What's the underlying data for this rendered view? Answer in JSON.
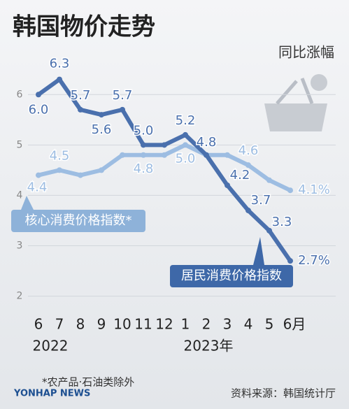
{
  "chart_data": {
    "type": "line",
    "title": "韩国物价走势",
    "subtitle": "同比涨幅",
    "categories": [
      "6",
      "7",
      "8",
      "9",
      "10",
      "11",
      "12",
      "1",
      "2",
      "3",
      "4",
      "5",
      "6月"
    ],
    "year_labels": [
      "2022",
      "2023年"
    ],
    "series": [
      {
        "name": "居民消费价格指数",
        "color": "#4a70ad",
        "values": [
          6.0,
          6.3,
          5.7,
          5.6,
          5.7,
          5.0,
          5.0,
          5.2,
          4.8,
          4.2,
          3.7,
          3.3,
          2.7
        ],
        "value_labels": [
          "6.0",
          "6.3",
          "5.7",
          "5.6",
          "5.7",
          "5.0",
          null,
          "5.2",
          "4.8",
          "4.2",
          "3.7",
          "3.3",
          "2.7%"
        ]
      },
      {
        "name": "核心消费价格指数*",
        "color": "#9dbde2",
        "values": [
          4.4,
          4.5,
          4.4,
          4.5,
          4.8,
          4.8,
          4.8,
          5.0,
          4.8,
          4.8,
          4.6,
          4.3,
          4.1
        ],
        "value_labels": [
          "4.4",
          "4.5",
          null,
          null,
          null,
          "4.8",
          null,
          "5.0",
          null,
          null,
          "4.6",
          null,
          "4.1%"
        ]
      }
    ],
    "ylim": [
      1.8,
      6.6
    ],
    "yticks": [
      2,
      3,
      4,
      5,
      6
    ],
    "grid": true,
    "note": "*农产品·石油类除外",
    "source": "资料来源：韩国统计厅",
    "brand": "YONHAP NEWS"
  }
}
